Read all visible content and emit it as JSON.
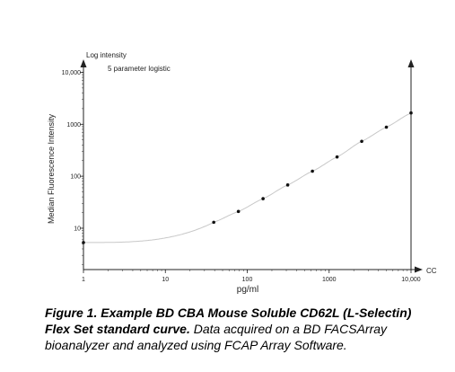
{
  "chart_data": {
    "type": "line",
    "title": "",
    "y_axis_title": "Log intensity",
    "annotation": "5 parameter logistic",
    "xlabel": "pg/ml",
    "ylabel": "Median Fluorescence Intensity",
    "x_axis_end_label": "CC",
    "x_scale": "log",
    "y_scale": "log",
    "xlim": [
      1,
      10000
    ],
    "ylim": [
      1.6,
      14000
    ],
    "x_ticks": [
      1,
      10,
      100,
      1000,
      10000
    ],
    "x_tick_labels": [
      "1",
      "10",
      "100",
      "1000",
      "10,000"
    ],
    "y_ticks": [
      10,
      100,
      1000,
      10000
    ],
    "y_tick_labels": [
      "10",
      "100",
      "1000",
      "10,000"
    ],
    "grid": false,
    "legend": "none",
    "series": [
      {
        "points": [
          {
            "x": 1,
            "y": 5.3
          },
          {
            "x": 39,
            "y": 13
          },
          {
            "x": 78,
            "y": 21
          },
          {
            "x": 156,
            "y": 37
          },
          {
            "x": 312,
            "y": 68
          },
          {
            "x": 625,
            "y": 125
          },
          {
            "x": 1250,
            "y": 235
          },
          {
            "x": 2500,
            "y": 470
          },
          {
            "x": 5000,
            "y": 880
          },
          {
            "x": 10000,
            "y": 1650
          }
        ],
        "fit": {
          "type": "5PL",
          "bottom": 5.3
        }
      }
    ]
  },
  "caption": {
    "bold": "Figure 1. Example BD CBA Mouse Soluble CD62L (L-Selectin) Flex Set standard curve.",
    "text": " Data acquired on a BD FACSArray bioanalyzer and analyzed using FCAP Array Software."
  }
}
